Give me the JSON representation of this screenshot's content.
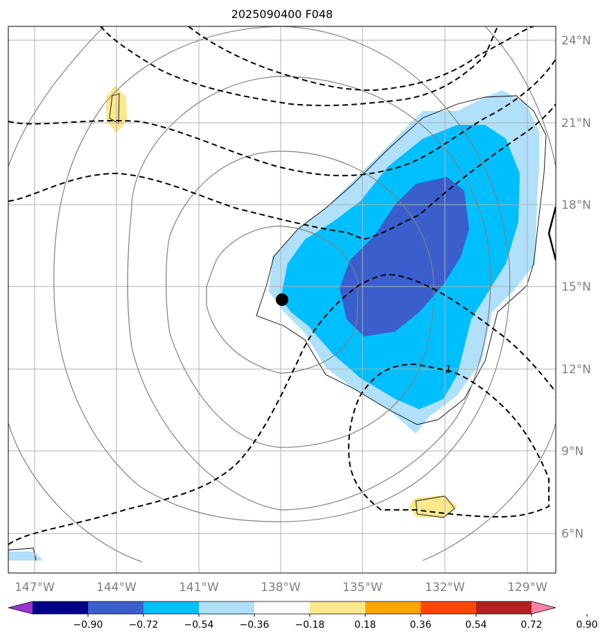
{
  "title": "2025090400 F048",
  "lat_labels": [
    "24°N",
    "21°N",
    "18°N",
    "15°N",
    "12°N",
    "9°N",
    "6°N"
  ],
  "lon_labels": [
    "147°W",
    "144°W",
    "141°W",
    "138°W",
    "135°W",
    "132°W",
    "129°W"
  ],
  "contour_label": "1",
  "colorbar": {
    "colors": [
      "#9a33d0",
      "#00008b",
      "#3a5fcd",
      "#00bfff",
      "#b0e0fa",
      "#ffffff",
      "#fce98c",
      "#ffa500",
      "#ff4500",
      "#b22222",
      "#ff82ab"
    ],
    "ticks": [
      "−0.90",
      "−0.72",
      "−0.54",
      "−0.36",
      "−0.18",
      "0.18",
      "0.36",
      "0.54",
      "0.72",
      "0.90"
    ]
  },
  "colors": {
    "grid": "#b0b0b0",
    "isobar": "#808080",
    "dashed_contour": "#000000",
    "center_marker": "#000000",
    "label_gray": "#7f7f7f"
  }
}
